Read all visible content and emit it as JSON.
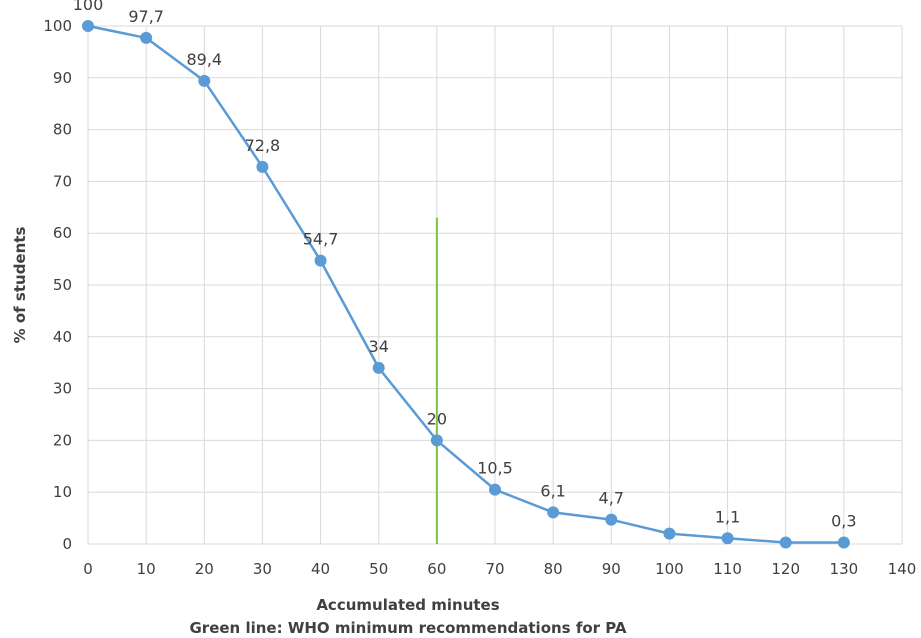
{
  "chart_data": {
    "type": "line",
    "title": "",
    "xlabel": "Accumulated minutes",
    "ylabel": "% of students",
    "note": "Green line: WHO minimum recommendations for PA",
    "xlim": [
      0,
      140
    ],
    "ylim": [
      0,
      100
    ],
    "x_ticks": [
      0,
      10,
      20,
      30,
      40,
      50,
      60,
      70,
      80,
      90,
      100,
      110,
      120,
      130,
      140
    ],
    "y_ticks": [
      0,
      10,
      20,
      30,
      40,
      50,
      60,
      70,
      80,
      90,
      100
    ],
    "grid": true,
    "series": [
      {
        "color": "#5b9bd5",
        "x": [
          0,
          10,
          20,
          30,
          40,
          50,
          60,
          70,
          80,
          90,
          100,
          110,
          120,
          130
        ],
        "values": [
          100,
          97.7,
          89.4,
          72.8,
          54.7,
          34,
          20,
          10.5,
          6.1,
          4.7,
          2,
          1.1,
          0.3,
          0.3
        ],
        "labels": [
          "100",
          "97,7",
          "89,4",
          "72,8",
          "54,7",
          "34",
          "20",
          "10,5",
          "6,1",
          "4,7",
          "",
          "1,1",
          "",
          "0,3"
        ]
      }
    ],
    "reference_line": {
      "x": 60,
      "y_range": [
        0,
        63
      ],
      "color": "#7cc142"
    }
  }
}
